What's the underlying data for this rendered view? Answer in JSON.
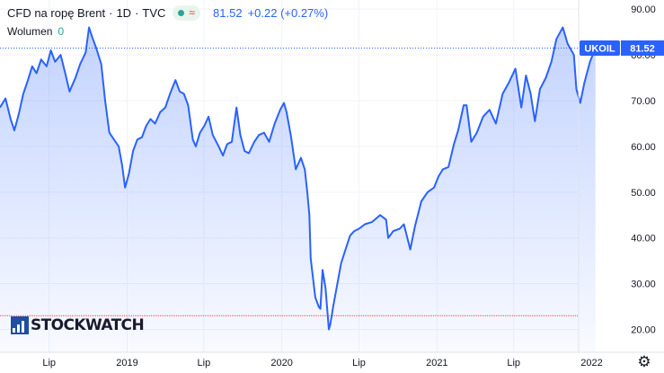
{
  "header": {
    "title": "CFD na ropę Brent",
    "interval": "1D",
    "exchange": "TVC",
    "last_price": "81.52",
    "change": "+0.22 (+0.27%)"
  },
  "volume": {
    "label": "Wolumen",
    "value": "0"
  },
  "watermark": {
    "logo_text": "STOCKWATCH"
  },
  "icons": {
    "market_status": "market-open-dot-icon",
    "settings": "gear-icon"
  },
  "colors": {
    "line": "#2962ff",
    "area_top": "#2962ff",
    "price_axis_label": "#2962ff",
    "reference_line": "#f23645"
  },
  "chart_data": {
    "type": "area",
    "ticker_label": "UKOIL",
    "last_value_label": "81.52",
    "ylim": [
      15,
      92
    ],
    "y_ticks": [
      {
        "v": 20,
        "label": "20.00"
      },
      {
        "v": 30,
        "label": "30.00"
      },
      {
        "v": 40,
        "label": "40.00"
      },
      {
        "v": 50,
        "label": "50.00"
      },
      {
        "v": 60,
        "label": "60.00"
      },
      {
        "v": 70,
        "label": "70.00"
      },
      {
        "v": 80,
        "label": "80.00"
      },
      {
        "v": 90,
        "label": "90.00"
      }
    ],
    "xlim": [
      "2018-03-07",
      "2022-03-30"
    ],
    "x_ticks": [
      {
        "date": "2018-07-01",
        "label": "Lip"
      },
      {
        "date": "2019-01-01",
        "label": "2019"
      },
      {
        "date": "2019-07-01",
        "label": "Lip"
      },
      {
        "date": "2020-01-01",
        "label": "2020"
      },
      {
        "date": "2020-07-01",
        "label": "Lip"
      },
      {
        "date": "2021-01-01",
        "label": "2021"
      },
      {
        "date": "2021-07-01",
        "label": "Lip"
      },
      {
        "date": "2022-01-01",
        "label": "2022"
      }
    ],
    "grid": true,
    "reference_line_value": 23,
    "series": [
      {
        "points": [
          [
            "2018-03-07",
            68.5
          ],
          [
            "2018-03-20",
            70.5
          ],
          [
            "2018-04-01",
            66.0
          ],
          [
            "2018-04-10",
            63.5
          ],
          [
            "2018-04-20",
            67.0
          ],
          [
            "2018-05-01",
            71.5
          ],
          [
            "2018-05-12",
            74.5
          ],
          [
            "2018-05-22",
            77.5
          ],
          [
            "2018-06-01",
            76.0
          ],
          [
            "2018-06-12",
            79.0
          ],
          [
            "2018-06-25",
            77.5
          ],
          [
            "2018-07-05",
            81.0
          ],
          [
            "2018-07-15",
            78.5
          ],
          [
            "2018-07-28",
            80.0
          ],
          [
            "2018-08-08",
            76.0
          ],
          [
            "2018-08-18",
            72.0
          ],
          [
            "2018-09-01",
            75.0
          ],
          [
            "2018-09-12",
            78.0
          ],
          [
            "2018-09-25",
            80.5
          ],
          [
            "2018-10-03",
            86.0
          ],
          [
            "2018-10-10",
            84.0
          ],
          [
            "2018-10-20",
            81.5
          ],
          [
            "2018-11-01",
            78.0
          ],
          [
            "2018-11-10",
            70.0
          ],
          [
            "2018-11-20",
            63.0
          ],
          [
            "2018-12-01",
            61.5
          ],
          [
            "2018-12-12",
            60.0
          ],
          [
            "2018-12-20",
            56.0
          ],
          [
            "2018-12-27",
            51.0
          ],
          [
            "2019-01-05",
            54.0
          ],
          [
            "2019-01-15",
            59.0
          ],
          [
            "2019-01-25",
            61.5
          ],
          [
            "2019-02-05",
            62.0
          ],
          [
            "2019-02-15",
            64.5
          ],
          [
            "2019-02-25",
            66.0
          ],
          [
            "2019-03-08",
            65.0
          ],
          [
            "2019-03-20",
            67.5
          ],
          [
            "2019-04-01",
            68.5
          ],
          [
            "2019-04-12",
            71.5
          ],
          [
            "2019-04-25",
            74.5
          ],
          [
            "2019-05-05",
            72.0
          ],
          [
            "2019-05-15",
            71.5
          ],
          [
            "2019-05-25",
            69.0
          ],
          [
            "2019-06-05",
            61.5
          ],
          [
            "2019-06-12",
            60.0
          ],
          [
            "2019-06-22",
            63.0
          ],
          [
            "2019-07-02",
            64.5
          ],
          [
            "2019-07-12",
            66.5
          ],
          [
            "2019-07-22",
            62.5
          ],
          [
            "2019-08-05",
            60.0
          ],
          [
            "2019-08-15",
            58.0
          ],
          [
            "2019-08-25",
            60.5
          ],
          [
            "2019-09-05",
            61.0
          ],
          [
            "2019-09-16",
            68.5
          ],
          [
            "2019-09-25",
            62.5
          ],
          [
            "2019-10-05",
            59.0
          ],
          [
            "2019-10-15",
            58.5
          ],
          [
            "2019-10-28",
            61.0
          ],
          [
            "2019-11-08",
            62.5
          ],
          [
            "2019-11-20",
            63.0
          ],
          [
            "2019-12-02",
            61.0
          ],
          [
            "2019-12-15",
            65.0
          ],
          [
            "2019-12-28",
            68.0
          ],
          [
            "2020-01-06",
            69.5
          ],
          [
            "2020-01-12",
            67.5
          ],
          [
            "2020-01-22",
            62.5
          ],
          [
            "2020-02-03",
            55.0
          ],
          [
            "2020-02-15",
            57.5
          ],
          [
            "2020-02-24",
            55.0
          ],
          [
            "2020-03-01",
            50.0
          ],
          [
            "2020-03-06",
            45.0
          ],
          [
            "2020-03-09",
            35.5
          ],
          [
            "2020-03-16",
            30.0
          ],
          [
            "2020-03-20",
            27.0
          ],
          [
            "2020-03-28",
            25.0
          ],
          [
            "2020-04-01",
            24.5
          ],
          [
            "2020-04-06",
            33.0
          ],
          [
            "2020-04-13",
            29.0
          ],
          [
            "2020-04-21",
            20.0
          ],
          [
            "2020-04-24",
            21.0
          ],
          [
            "2020-05-01",
            25.0
          ],
          [
            "2020-05-10",
            29.5
          ],
          [
            "2020-05-20",
            34.5
          ],
          [
            "2020-06-01",
            38.0
          ],
          [
            "2020-06-10",
            40.5
          ],
          [
            "2020-06-20",
            41.5
          ],
          [
            "2020-07-01",
            42.0
          ],
          [
            "2020-07-15",
            43.0
          ],
          [
            "2020-08-01",
            43.5
          ],
          [
            "2020-08-20",
            45.0
          ],
          [
            "2020-09-03",
            44.0
          ],
          [
            "2020-09-08",
            40.0
          ],
          [
            "2020-09-20",
            41.5
          ],
          [
            "2020-10-05",
            42.0
          ],
          [
            "2020-10-15",
            43.0
          ],
          [
            "2020-10-30",
            37.5
          ],
          [
            "2020-11-10",
            42.5
          ],
          [
            "2020-11-25",
            48.0
          ],
          [
            "2020-12-10",
            50.0
          ],
          [
            "2020-12-25",
            51.0
          ],
          [
            "2021-01-05",
            53.5
          ],
          [
            "2021-01-15",
            55.0
          ],
          [
            "2021-01-28",
            55.5
          ],
          [
            "2021-02-10",
            60.5
          ],
          [
            "2021-02-20",
            63.5
          ],
          [
            "2021-03-05",
            69.0
          ],
          [
            "2021-03-12",
            69.0
          ],
          [
            "2021-03-23",
            61.0
          ],
          [
            "2021-04-05",
            63.0
          ],
          [
            "2021-04-20",
            66.5
          ],
          [
            "2021-05-05",
            68.0
          ],
          [
            "2021-05-20",
            65.0
          ],
          [
            "2021-06-05",
            71.5
          ],
          [
            "2021-06-20",
            74.0
          ],
          [
            "2021-07-05",
            77.0
          ],
          [
            "2021-07-19",
            68.5
          ],
          [
            "2021-07-30",
            75.5
          ],
          [
            "2021-08-10",
            71.5
          ],
          [
            "2021-08-20",
            65.5
          ],
          [
            "2021-09-01",
            72.5
          ],
          [
            "2021-09-15",
            75.0
          ],
          [
            "2021-09-28",
            78.5
          ],
          [
            "2021-10-10",
            83.5
          ],
          [
            "2021-10-25",
            86.0
          ],
          [
            "2021-11-05",
            82.5
          ],
          [
            "2021-11-20",
            80.0
          ],
          [
            "2021-11-26",
            72.5
          ],
          [
            "2021-12-05",
            69.5
          ],
          [
            "2021-12-15",
            74.0
          ],
          [
            "2021-12-28",
            78.5
          ],
          [
            "2022-01-10",
            81.5
          ]
        ]
      }
    ]
  }
}
